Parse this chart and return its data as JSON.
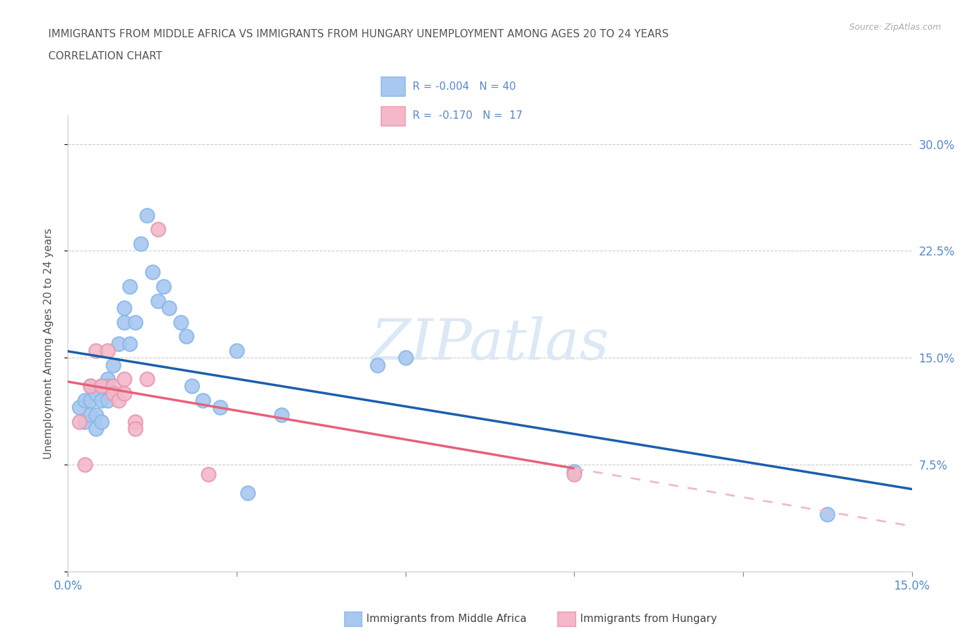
{
  "title_line1": "IMMIGRANTS FROM MIDDLE AFRICA VS IMMIGRANTS FROM HUNGARY UNEMPLOYMENT AMONG AGES 20 TO 24 YEARS",
  "title_line2": "CORRELATION CHART",
  "source": "Source: ZipAtlas.com",
  "ylabel": "Unemployment Among Ages 20 to 24 years",
  "xlim": [
    0.0,
    0.15
  ],
  "ylim": [
    0.0,
    0.32
  ],
  "r_blue": -0.004,
  "n_blue": 40,
  "r_pink": -0.17,
  "n_pink": 17,
  "blue_color": "#a8c8f0",
  "pink_color": "#f4b8c8",
  "trend_blue_color": "#1a5fad",
  "trend_pink_solid_color": "#e8607a",
  "trend_pink_dash_color": "#f4b8c8",
  "grid_color": "#cccccc",
  "title_color": "#555555",
  "axis_color": "#5588cc",
  "watermark_color": "#dce8f5",
  "blue_points_x": [
    0.002,
    0.003,
    0.003,
    0.004,
    0.004,
    0.004,
    0.005,
    0.005,
    0.005,
    0.006,
    0.006,
    0.006,
    0.007,
    0.007,
    0.007,
    0.008,
    0.009,
    0.01,
    0.01,
    0.011,
    0.011,
    0.012,
    0.013,
    0.014,
    0.015,
    0.016,
    0.017,
    0.018,
    0.02,
    0.021,
    0.022,
    0.024,
    0.027,
    0.03,
    0.032,
    0.038,
    0.055,
    0.06,
    0.09,
    0.135
  ],
  "blue_points_y": [
    0.115,
    0.12,
    0.105,
    0.13,
    0.12,
    0.11,
    0.125,
    0.11,
    0.1,
    0.13,
    0.12,
    0.105,
    0.135,
    0.13,
    0.12,
    0.145,
    0.16,
    0.185,
    0.175,
    0.2,
    0.16,
    0.175,
    0.23,
    0.25,
    0.21,
    0.19,
    0.2,
    0.185,
    0.175,
    0.165,
    0.13,
    0.12,
    0.115,
    0.155,
    0.055,
    0.11,
    0.145,
    0.15,
    0.07,
    0.04
  ],
  "pink_points_x": [
    0.002,
    0.003,
    0.004,
    0.005,
    0.006,
    0.007,
    0.008,
    0.008,
    0.009,
    0.01,
    0.01,
    0.012,
    0.012,
    0.014,
    0.016,
    0.025,
    0.09
  ],
  "pink_points_y": [
    0.105,
    0.075,
    0.13,
    0.155,
    0.13,
    0.155,
    0.13,
    0.125,
    0.12,
    0.135,
    0.125,
    0.105,
    0.1,
    0.135,
    0.24,
    0.068,
    0.068
  ]
}
